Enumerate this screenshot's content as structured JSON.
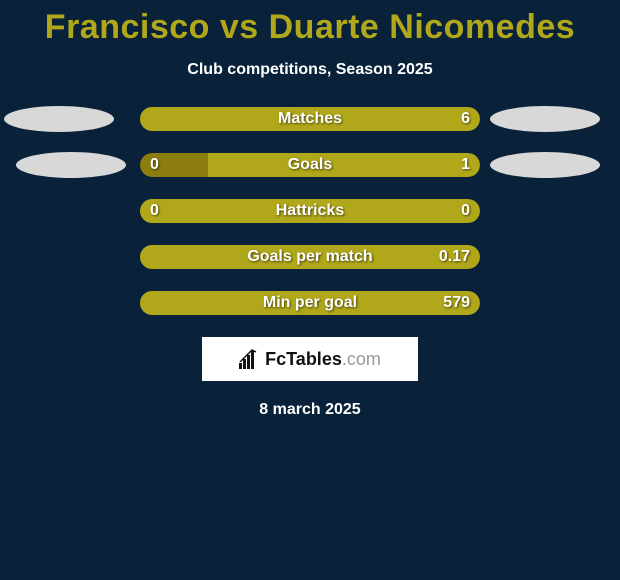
{
  "title": "Francisco vs Duarte Nicomedes",
  "subtitle": "Club competitions, Season 2025",
  "date": "8 march 2025",
  "colors": {
    "background": "#09223a",
    "accent": "#b0a71a",
    "bar_dark": "#8c7e0e",
    "bar_light": "#b0a71a",
    "ellipse": "#d8d8d8",
    "text": "#ffffff"
  },
  "logo": {
    "name": "FcTables",
    "suffix": ".com"
  },
  "rows": [
    {
      "label": "Matches",
      "left_val": "",
      "right_val": "6",
      "left_pct": 0,
      "has_left_ellipse": true,
      "has_right_ellipse": true,
      "ellipse_shift": false
    },
    {
      "label": "Goals",
      "left_val": "0",
      "right_val": "1",
      "left_pct": 20,
      "has_left_ellipse": true,
      "has_right_ellipse": true,
      "ellipse_shift": true
    },
    {
      "label": "Hattricks",
      "left_val": "0",
      "right_val": "0",
      "left_pct": 0,
      "has_left_ellipse": false,
      "has_right_ellipse": false,
      "ellipse_shift": false
    },
    {
      "label": "Goals per match",
      "left_val": "",
      "right_val": "0.17",
      "left_pct": 0,
      "has_left_ellipse": false,
      "has_right_ellipse": false,
      "ellipse_shift": false
    },
    {
      "label": "Min per goal",
      "left_val": "",
      "right_val": "579",
      "left_pct": 0,
      "has_left_ellipse": false,
      "has_right_ellipse": false,
      "ellipse_shift": false
    }
  ]
}
